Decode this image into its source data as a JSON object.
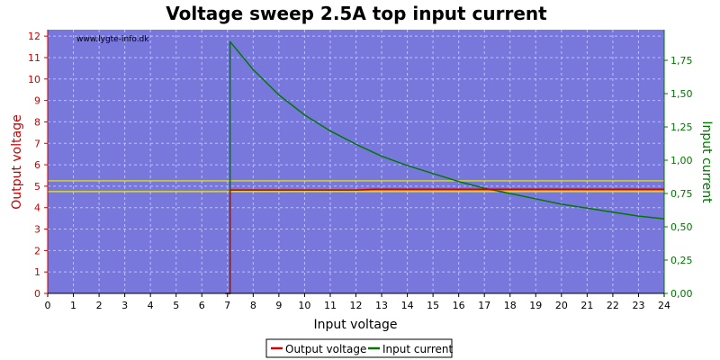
{
  "chart_data": {
    "type": "line",
    "title": "Voltage sweep 2.5A top input current",
    "xlabel": "Input voltage",
    "ylabel_left": "Output voltage",
    "ylabel_right": "Input current",
    "watermark": "www.lygte-info.dk",
    "xlim": [
      0,
      24
    ],
    "ylim_left": [
      0,
      12.3
    ],
    "ylim_right": [
      0,
      1.98
    ],
    "x_ticks": [
      "0",
      "1",
      "2",
      "3",
      "4",
      "5",
      "6",
      "7",
      "8",
      "9",
      "10",
      "11",
      "12",
      "13",
      "14",
      "15",
      "16",
      "17",
      "18",
      "19",
      "20",
      "21",
      "22",
      "23",
      "24"
    ],
    "y_left_ticks": [
      "0",
      "1",
      "2",
      "3",
      "4",
      "5",
      "6",
      "7",
      "8",
      "9",
      "10",
      "11",
      "12"
    ],
    "y_right_ticks": [
      "0,00",
      "0,25",
      "0,50",
      "0,75",
      "1,00",
      "1,25",
      "1,50",
      "1,75"
    ],
    "grid": true,
    "legend_position": "bottom-center",
    "colors": {
      "plot_background": "#7878dc",
      "grid": "#c0c0f0",
      "output_voltage": "#cc0000",
      "input_current": "#007700",
      "reference_lines": "#eeee00",
      "left_axis": "#cc0000",
      "right_axis": "#007700"
    },
    "reference_lines": [
      5.25,
      4.75
    ],
    "series": [
      {
        "name": "Output voltage",
        "axis": "left",
        "x": [
          6.9,
          7.1,
          7.1,
          8,
          10,
          12,
          12.7,
          14,
          16,
          18,
          20,
          22,
          24
        ],
        "y": [
          0,
          0,
          4.82,
          4.82,
          4.82,
          4.82,
          4.86,
          4.86,
          4.86,
          4.86,
          4.86,
          4.86,
          4.86
        ]
      },
      {
        "name": "Input current",
        "axis": "right",
        "x": [
          7.0,
          7.1,
          7.1,
          8,
          9,
          10,
          11,
          12,
          13,
          14,
          15,
          16,
          17,
          18,
          19,
          20,
          21,
          22,
          23,
          24
        ],
        "y": [
          0,
          0,
          1.89,
          1.68,
          1.49,
          1.34,
          1.22,
          1.12,
          1.03,
          0.96,
          0.9,
          0.84,
          0.79,
          0.75,
          0.71,
          0.67,
          0.64,
          0.61,
          0.58,
          0.56
        ]
      }
    ]
  }
}
